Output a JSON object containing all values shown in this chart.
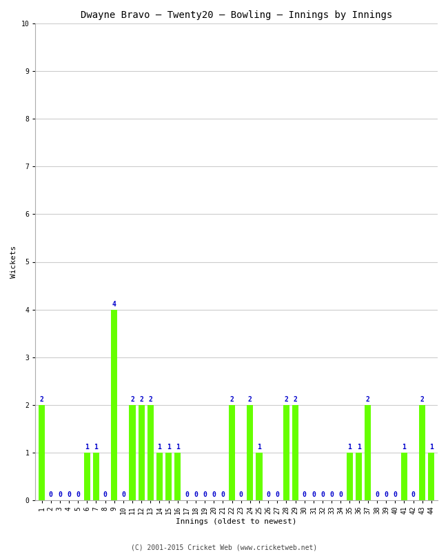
{
  "title": "Dwayne Bravo – Twenty20 – Bowling – Innings by Innings",
  "xlabel": "Innings (oldest to newest)",
  "ylabel": "Wickets",
  "ylim": [
    0,
    10
  ],
  "yticks": [
    0,
    1,
    2,
    3,
    4,
    5,
    6,
    7,
    8,
    9,
    10
  ],
  "innings": [
    1,
    2,
    3,
    4,
    5,
    6,
    7,
    8,
    9,
    10,
    11,
    12,
    13,
    14,
    15,
    16,
    17,
    18,
    19,
    20,
    21,
    22,
    23,
    24,
    25,
    26,
    27,
    28,
    29,
    30,
    31,
    32,
    33,
    34,
    35,
    36,
    37,
    38,
    39,
    40,
    41,
    42,
    43,
    44
  ],
  "wickets": [
    2,
    0,
    0,
    0,
    0,
    1,
    1,
    0,
    4,
    0,
    2,
    2,
    2,
    1,
    1,
    1,
    0,
    0,
    0,
    0,
    0,
    2,
    0,
    2,
    1,
    0,
    0,
    2,
    2,
    0,
    0,
    0,
    0,
    0,
    1,
    1,
    2,
    0,
    0,
    0,
    1,
    0,
    2,
    1
  ],
  "bar_color": "#66ff00",
  "label_color": "#0000cc",
  "background_color": "#ffffff",
  "grid_color": "#cccccc",
  "title_fontsize": 10,
  "axis_fontsize": 8,
  "tick_fontsize": 7,
  "label_fontsize": 7,
  "footer": "(C) 2001-2015 Cricket Web (www.cricketweb.net)"
}
